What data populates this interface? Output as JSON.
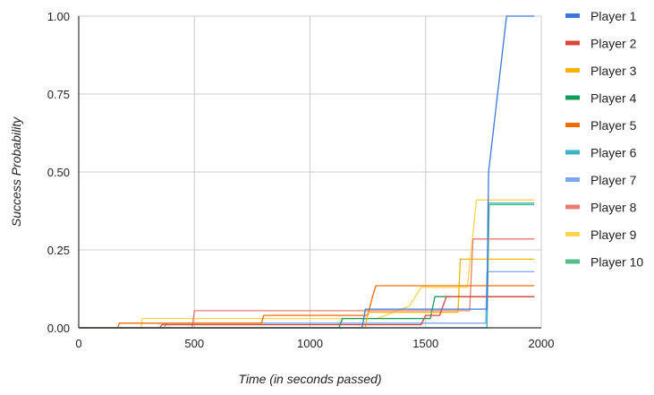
{
  "chart_data": {
    "type": "line",
    "title": "",
    "xlabel": "Time (in seconds passed)",
    "ylabel": "Success Probability",
    "xlim": [
      0,
      2000
    ],
    "ylim": [
      0,
      1
    ],
    "x_ticks": [
      0,
      500,
      1000,
      1500,
      2000
    ],
    "x_tick_labels": [
      "0",
      "500",
      "1000",
      "1500",
      "2000"
    ],
    "y_ticks": [
      0,
      0.25,
      0.5,
      0.75,
      1
    ],
    "y_tick_labels": [
      "0.00",
      "0.25",
      "0.50",
      "0.75",
      "1.00"
    ],
    "grid": true,
    "legend_position": "right",
    "series": [
      {
        "name": "Player 1",
        "color": "#3d78d8",
        "points": [
          [
            0,
            0
          ],
          [
            1225,
            0
          ],
          [
            1240,
            0.06
          ],
          [
            1765,
            0.06
          ],
          [
            1772,
            0.5
          ],
          [
            1850,
            1.0
          ],
          [
            1970,
            1.0
          ]
        ]
      },
      {
        "name": "Player 2",
        "color": "#db4437",
        "points": [
          [
            0,
            0
          ],
          [
            350,
            0
          ],
          [
            360,
            0.01
          ],
          [
            1480,
            0.01
          ],
          [
            1500,
            0.04
          ],
          [
            1560,
            0.04
          ],
          [
            1590,
            0.1
          ],
          [
            1970,
            0.1
          ]
        ]
      },
      {
        "name": "Player 3",
        "color": "#f4b400",
        "points": [
          [
            0,
            0
          ],
          [
            1240,
            0
          ],
          [
            1250,
            0.05
          ],
          [
            1640,
            0.05
          ],
          [
            1650,
            0.22
          ],
          [
            1970,
            0.22
          ]
        ]
      },
      {
        "name": "Player 4",
        "color": "#0f9d58",
        "points": [
          [
            0,
            0
          ],
          [
            1125,
            0
          ],
          [
            1140,
            0.03
          ],
          [
            1520,
            0.03
          ],
          [
            1540,
            0.1
          ],
          [
            1970,
            0.1
          ]
        ]
      },
      {
        "name": "Player 5",
        "color": "#f36c00",
        "points": [
          [
            0,
            0
          ],
          [
            170,
            0
          ],
          [
            175,
            0.015
          ],
          [
            790,
            0.015
          ],
          [
            800,
            0.04
          ],
          [
            1250,
            0.04
          ],
          [
            1270,
            0.1
          ],
          [
            1285,
            0.135
          ],
          [
            1970,
            0.135
          ]
        ]
      },
      {
        "name": "Player 6",
        "color": "#3bb5c6",
        "points": [
          [
            0,
            0
          ],
          [
            1765,
            0
          ],
          [
            1770,
            0.4
          ],
          [
            1970,
            0.4
          ]
        ]
      },
      {
        "name": "Player 7",
        "color": "#7ba7f0",
        "points": [
          [
            0,
            0
          ],
          [
            370,
            0
          ],
          [
            380,
            0.015
          ],
          [
            1760,
            0.015
          ],
          [
            1765,
            0.18
          ],
          [
            1970,
            0.18
          ]
        ]
      },
      {
        "name": "Player 8",
        "color": "#e87c73",
        "points": [
          [
            0,
            0
          ],
          [
            490,
            0
          ],
          [
            500,
            0.055
          ],
          [
            1690,
            0.055
          ],
          [
            1705,
            0.285
          ],
          [
            1970,
            0.285
          ]
        ]
      },
      {
        "name": "Player 9",
        "color": "#ffd54f",
        "points": [
          [
            0,
            0
          ],
          [
            270,
            0
          ],
          [
            275,
            0.03
          ],
          [
            1290,
            0.03
          ],
          [
            1430,
            0.07
          ],
          [
            1480,
            0.13
          ],
          [
            1680,
            0.13
          ],
          [
            1720,
            0.41
          ],
          [
            1970,
            0.41
          ]
        ]
      },
      {
        "name": "Player 10",
        "color": "#57bb8a",
        "points": [
          [
            0,
            0
          ],
          [
            1765,
            0
          ],
          [
            1775,
            0.395
          ],
          [
            1970,
            0.395
          ]
        ]
      }
    ]
  }
}
